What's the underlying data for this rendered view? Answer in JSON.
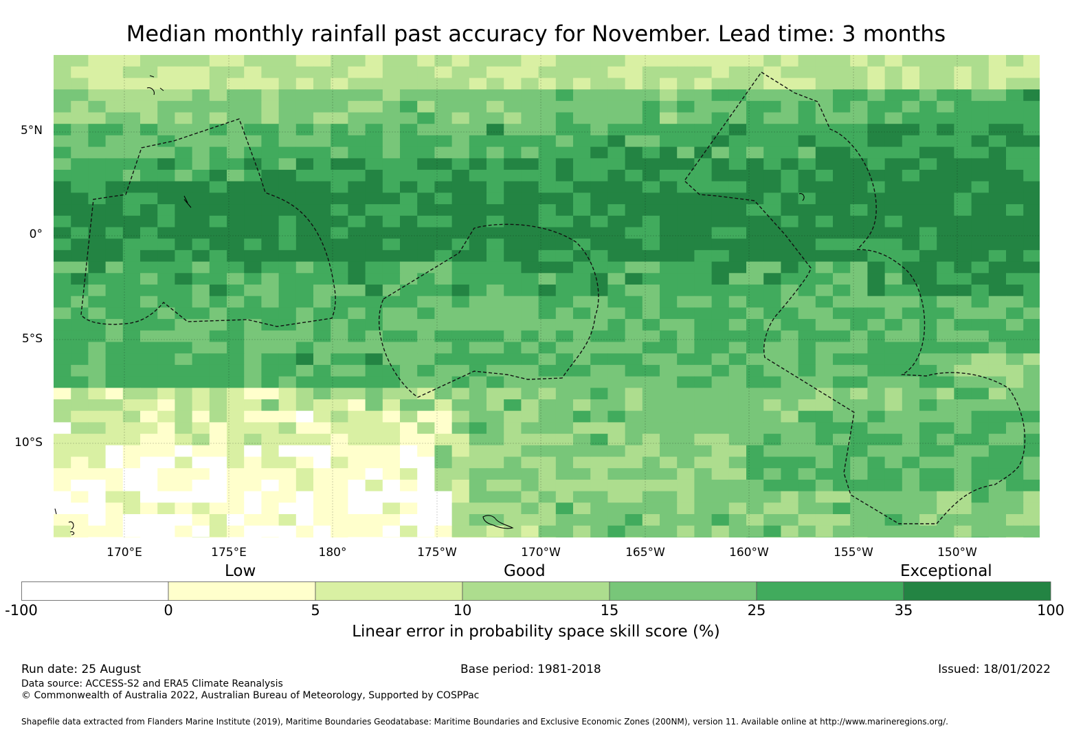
{
  "title": "Median monthly rainfall past accuracy for November. Lead time: 3 months",
  "map": {
    "lat_labels": [
      "5°N",
      "0°",
      "5°S",
      "10°S"
    ],
    "lon_labels": [
      "170°E",
      "175°E",
      "180°",
      "175°W",
      "170°W",
      "165°W",
      "160°W",
      "155°W",
      "150°W"
    ],
    "band_colors": [
      "#ffffff",
      "#ffffcc",
      "#d9f0a3",
      "#addd8e",
      "#78c679",
      "#41ab5d",
      "#238443"
    ],
    "boundary_style": "dashed black (Exclusive Economic Zones)"
  },
  "legend": {
    "qualitative": [
      "Low",
      "Good",
      "Exceptional"
    ],
    "ticks": [
      "-100",
      "0",
      "5",
      "10",
      "15",
      "25",
      "35",
      "100"
    ],
    "colors": [
      "#ffffff",
      "#ffffcc",
      "#d9f0a3",
      "#addd8e",
      "#78c679",
      "#41ab5d",
      "#238443"
    ],
    "label": "Linear error in probability space skill score (%)"
  },
  "footer": {
    "run_date": "Run date: 25 August",
    "base_period": "Base period: 1981-2018",
    "issued": "Issued: 18/01/2022",
    "data_source": "Data source: ACCESS-S2 and ERA5 Climate Reanalysis",
    "copyright": "© Commonwealth of Australia 2022, Australian Bureau of Meteorology, Supported by COSPPac",
    "shapefile": "Shapefile data extracted from Flanders Marine Institute (2019), Maritime Boundaries Geodatabase: Maritime Boundaries and Exclusive Economic Zones (200NM), version 11. Available online at http://www.marineregions.org/."
  }
}
